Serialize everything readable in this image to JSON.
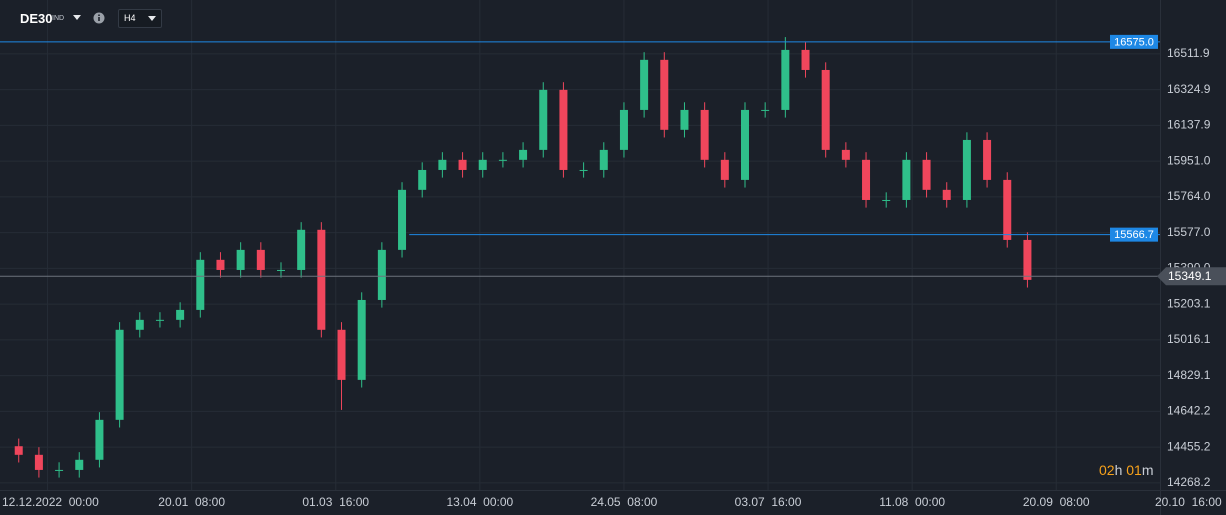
{
  "header": {
    "symbol": "DE30",
    "symbol_type": "IND",
    "timeframe": "H4"
  },
  "countdown": {
    "hours": "02",
    "h": "h",
    "minutes": "01",
    "m": "m"
  },
  "chart_data": {
    "type": "candlestick",
    "x": [
      -20,
      -6,
      8,
      22,
      36,
      50,
      64,
      78,
      92,
      106,
      120,
      134,
      148,
      162,
      176,
      190,
      204,
      218,
      232,
      246,
      260,
      274,
      288,
      302,
      316,
      330,
      344,
      358,
      372,
      386,
      400,
      414,
      428,
      442,
      456,
      470,
      484,
      498,
      512,
      526,
      540,
      554,
      568,
      582,
      596,
      610,
      624,
      638,
      652,
      666,
      680
    ],
    "open": [
      14460,
      14415,
      14336,
      14336,
      14389,
      14598,
      15069,
      15121,
      15121,
      15173,
      15435,
      15382,
      15487,
      15382,
      15382,
      15592,
      15069,
      14807,
      15225,
      15487,
      15801,
      15905,
      15958,
      15905,
      15958,
      15958,
      16010,
      16324,
      15905,
      15905,
      16010,
      16219,
      16481,
      16115,
      16219,
      15958,
      15853,
      16219,
      16219,
      16533,
      16428,
      16010,
      15958,
      15748,
      15748,
      15958,
      15801,
      15748,
      16062,
      15853,
      15539
    ],
    "high": [
      14500,
      14455,
      14376,
      14429,
      14638,
      15109,
      15161,
      15161,
      15213,
      15475,
      15475,
      15527,
      15527,
      15422,
      15632,
      15632,
      15109,
      15265,
      15527,
      15841,
      15945,
      15998,
      15998,
      15998,
      15998,
      16050,
      16364,
      16364,
      15945,
      16050,
      16259,
      16521,
      16521,
      16259,
      16259,
      15998,
      16259,
      16259,
      16600,
      16573,
      16468,
      16050,
      15998,
      15788,
      15998,
      15998,
      15841,
      16102,
      16102,
      15893,
      15579
    ],
    "low": [
      14375,
      14296,
      14296,
      14296,
      14349,
      14558,
      15029,
      15081,
      15081,
      15133,
      15342,
      15342,
      15342,
      15342,
      15342,
      15029,
      14650,
      14767,
      15185,
      15447,
      15761,
      15865,
      15865,
      15865,
      15918,
      15918,
      15970,
      15865,
      15865,
      15865,
      15970,
      16179,
      16075,
      16075,
      15918,
      15813,
      15813,
      16179,
      16179,
      16388,
      15970,
      15918,
      15708,
      15708,
      15708,
      15761,
      15708,
      15708,
      15813,
      15499,
      15290
    ],
    "close": [
      14415,
      14336,
      14336,
      14389,
      14598,
      15069,
      15121,
      15121,
      15173,
      15435,
      15382,
      15487,
      15382,
      15382,
      15592,
      15069,
      14807,
      15225,
      15487,
      15801,
      15905,
      15958,
      15905,
      15958,
      15958,
      16010,
      16324,
      15905,
      15905,
      16010,
      16219,
      16481,
      16115,
      16219,
      15958,
      15853,
      16219,
      16219,
      16533,
      16428,
      16010,
      15958,
      15748,
      15748,
      15958,
      15801,
      15748,
      16062,
      15853,
      15539,
      15330
    ],
    "up_color": "#2fbf8a",
    "down_color": "#f0465c",
    "xlim": [
      -33,
      772
    ],
    "ylim": [
      14231,
      16794
    ],
    "xticks": [
      {
        "value": 0,
        "label": "12.12.2022  00:00"
      },
      {
        "value": 100,
        "label": "20.01  08:00"
      },
      {
        "value": 200,
        "label": "01.03  16:00"
      },
      {
        "value": 300,
        "label": "13.04  00:00"
      },
      {
        "value": 400,
        "label": "24.05  08:00"
      },
      {
        "value": 500,
        "label": "03.07  16:00"
      },
      {
        "value": 600,
        "label": "11.08  00:00"
      },
      {
        "value": 700,
        "label": "20.09  08:00"
      },
      {
        "value": 800,
        "label": "20.10  16:00"
      }
    ],
    "yticks": [
      14268.2,
      14455.2,
      14642.2,
      14829.1,
      15016.1,
      15203.1,
      {
        "value": 15390,
        "label": "15390.0"
      },
      {
        "value": 15577,
        "label": "15577.0"
      },
      {
        "value": 15764,
        "label": "15764.0"
      },
      {
        "value": 15951,
        "label": "15951.0"
      },
      16137.9,
      16324.9,
      16511.9
    ],
    "grid": true,
    "lines": [
      {
        "value": 16575,
        "label": "16575.0",
        "color": "#1e88e5"
      },
      {
        "value": 15566.7,
        "label": "15566.7",
        "color": "#1e88e5",
        "x_start": 251
      },
      {
        "value": 15349.1,
        "color": "#6d737c"
      }
    ]
  }
}
